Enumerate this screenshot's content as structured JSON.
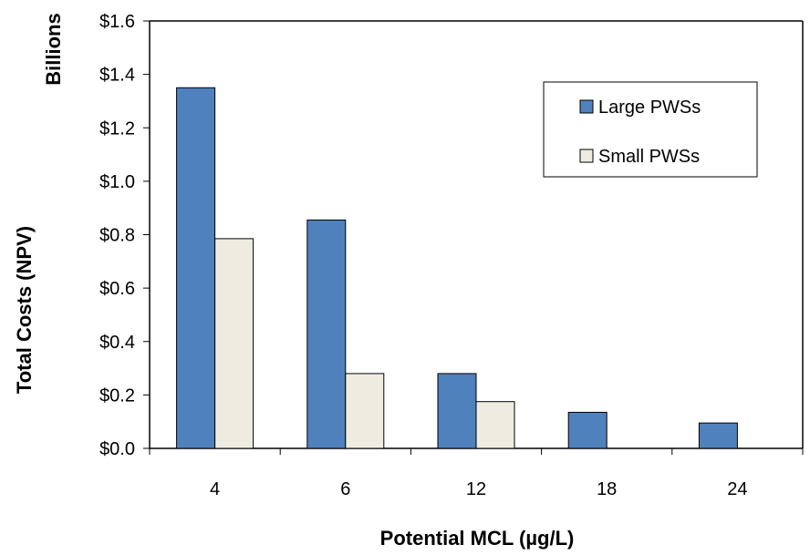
{
  "chart_data": {
    "type": "bar",
    "title": "",
    "xlabel": "Potential MCL (µg/L)",
    "ylabel": "Total Costs (NPV)",
    "units_label": "Billions",
    "categories": [
      "4",
      "6",
      "12",
      "18",
      "24"
    ],
    "series": [
      {
        "name": "Large PWSs",
        "values": [
          1.35,
          0.855,
          0.28,
          0.135,
          0.095
        ],
        "color": "#4f81bd"
      },
      {
        "name": "Small PWSs",
        "values": [
          0.785,
          0.28,
          0.175,
          0.0,
          0.0
        ],
        "color": "#eeece1"
      }
    ],
    "ylim": [
      0,
      1.6
    ],
    "yticks": [
      0,
      0.2,
      0.4,
      0.6,
      0.8,
      1.0,
      1.2,
      1.4,
      1.6
    ],
    "ytick_labels": [
      "$0.0",
      "$0.2",
      "$0.4",
      "$0.6",
      "$0.8",
      "$1.0",
      "$1.2",
      "$1.4",
      "$1.6"
    ],
    "grid": false,
    "legend_position": "top-right"
  }
}
